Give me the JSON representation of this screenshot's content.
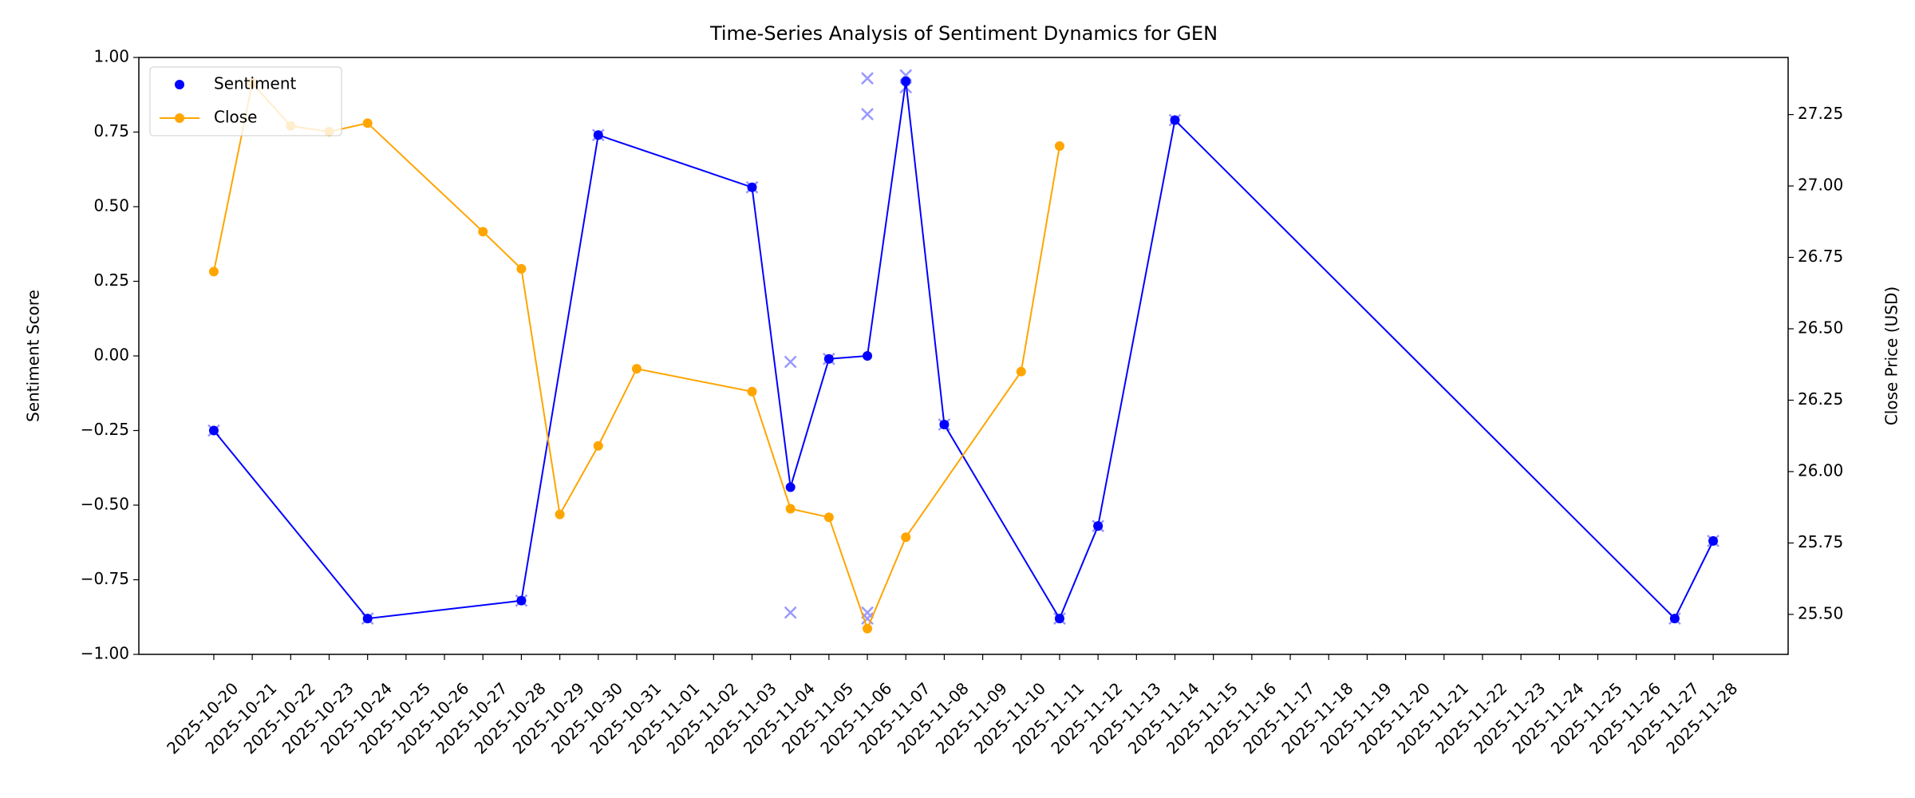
{
  "chart_data": {
    "type": "line",
    "title": "Time-Series Analysis of Sentiment Dynamics for GEN",
    "ylabel": "Sentiment Score",
    "y2label": "Close Price (USD)",
    "legend": "upper left",
    "ylim": [
      -1,
      1
    ],
    "yticks": [
      {
        "value": -1,
        "label": "−1.00"
      },
      {
        "value": -0.75,
        "label": "−0.75"
      },
      {
        "value": -0.5,
        "label": "−0.50"
      },
      {
        "value": -0.25,
        "label": "−0.25"
      },
      {
        "value": 0,
        "label": "0.00"
      },
      {
        "value": 0.25,
        "label": "0.25"
      },
      {
        "value": 0.5,
        "label": "0.50"
      },
      {
        "value": 0.75,
        "label": "0.75"
      },
      {
        "value": 1,
        "label": "1.00"
      }
    ],
    "y2lim": [
      25.36,
      27.45
    ],
    "y2ticks": [
      {
        "value": 25.5,
        "label": "25.50"
      },
      {
        "value": 25.75,
        "label": "25.75"
      },
      {
        "value": 26,
        "label": "26.00"
      },
      {
        "value": 26.25,
        "label": "26.25"
      },
      {
        "value": 26.5,
        "label": "26.50"
      },
      {
        "value": 26.75,
        "label": "26.75"
      },
      {
        "value": 27,
        "label": "27.00"
      },
      {
        "value": 27.25,
        "label": "27.25"
      }
    ],
    "xticks": [
      "2025-10-20",
      "2025-10-21",
      "2025-10-22",
      "2025-10-23",
      "2025-10-24",
      "2025-10-25",
      "2025-10-26",
      "2025-10-27",
      "2025-10-28",
      "2025-10-29",
      "2025-10-30",
      "2025-10-31",
      "2025-11-01",
      "2025-11-02",
      "2025-11-03",
      "2025-11-04",
      "2025-11-05",
      "2025-11-06",
      "2025-11-07",
      "2025-11-08",
      "2025-11-09",
      "2025-11-10",
      "2025-11-11",
      "2025-11-12",
      "2025-11-13",
      "2025-11-14",
      "2025-11-15",
      "2025-11-16",
      "2025-11-17",
      "2025-11-18",
      "2025-11-19",
      "2025-11-20",
      "2025-11-21",
      "2025-11-22",
      "2025-11-23",
      "2025-11-24",
      "2025-11-25",
      "2025-11-26",
      "2025-11-27",
      "2025-11-28"
    ],
    "series": [
      {
        "name": "Sentiment",
        "color": "#0000ff",
        "x": [
          "2025-10-20",
          "2025-10-24",
          "2025-10-28",
          "2025-10-30",
          "2025-11-03",
          "2025-11-04",
          "2025-11-05",
          "2025-11-06",
          "2025-11-07",
          "2025-11-08",
          "2025-11-11",
          "2025-11-12",
          "2025-11-14",
          "2025-11-27",
          "2025-11-28"
        ],
        "values": [
          -0.25,
          -0.88,
          -0.82,
          0.74,
          0.565,
          -0.44,
          -0.01,
          0.0,
          0.92,
          -0.23,
          -0.88,
          -0.57,
          0.79,
          -0.88,
          -0.62
        ]
      },
      {
        "name": "Close",
        "color": "#ffa500",
        "axis": "y2",
        "x": [
          "2025-10-20",
          "2025-10-21",
          "2025-10-22",
          "2025-10-23",
          "2025-10-24",
          "2025-10-27",
          "2025-10-28",
          "2025-10-29",
          "2025-10-30",
          "2025-10-31",
          "2025-11-03",
          "2025-11-04",
          "2025-11-05",
          "2025-11-06",
          "2025-11-07",
          "2025-11-10",
          "2025-11-11"
        ],
        "values": [
          26.7,
          27.36,
          27.21,
          27.19,
          27.22,
          26.84,
          26.71,
          25.85,
          26.09,
          26.36,
          26.28,
          25.87,
          25.84,
          25.45,
          25.77,
          26.35,
          27.14
        ]
      }
    ],
    "observations": {
      "color": "#9999ff",
      "x": [
        "2025-10-20",
        "2025-10-24",
        "2025-10-28",
        "2025-10-30",
        "2025-11-03",
        "2025-11-04",
        "2025-11-04",
        "2025-11-05",
        "2025-11-06",
        "2025-11-06",
        "2025-11-06",
        "2025-11-06",
        "2025-11-07",
        "2025-11-07",
        "2025-11-08",
        "2025-11-11",
        "2025-11-12",
        "2025-11-14",
        "2025-11-27",
        "2025-11-28"
      ],
      "values": [
        -0.25,
        -0.88,
        -0.82,
        0.74,
        0.565,
        -0.02,
        -0.86,
        -0.01,
        0.93,
        0.81,
        -0.86,
        -0.88,
        0.94,
        0.9,
        -0.23,
        -0.88,
        -0.57,
        0.79,
        -0.88,
        -0.62
      ]
    }
  }
}
